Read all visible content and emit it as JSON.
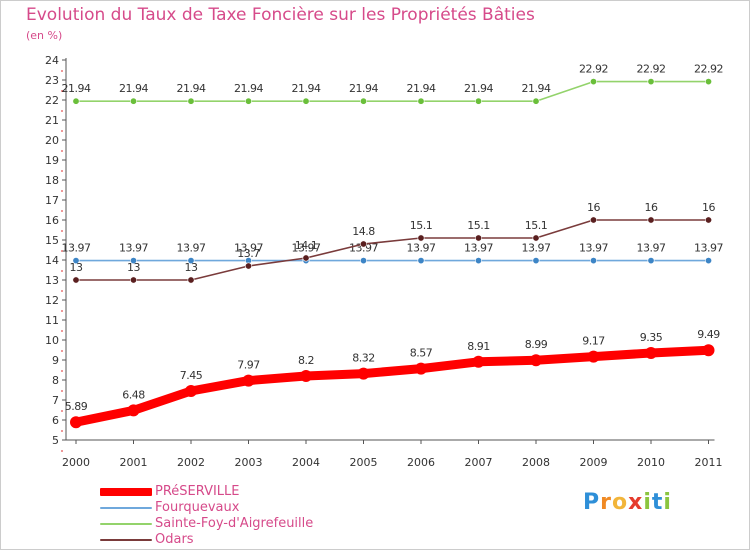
{
  "header": {
    "title": "Evolution du Taux de Taxe Foncière sur les Propriétés Bâties",
    "unit": "(en %)"
  },
  "chart_data": {
    "type": "line",
    "title": "Evolution du Taux de Taxe Foncière sur les Propriétés Bâties",
    "ylabel": "(en %)",
    "xlabel": "",
    "categories": [
      "2000",
      "2001",
      "2002",
      "2003",
      "2004",
      "2005",
      "2006",
      "2007",
      "2008",
      "2009",
      "2010",
      "2011"
    ],
    "ylim": [
      5,
      24
    ],
    "yticks": [
      "5",
      "6",
      "7",
      "8",
      "9",
      "10",
      "11",
      "12",
      "13",
      "14",
      "15",
      "16",
      "17",
      "18",
      "19",
      "20",
      "21",
      "22",
      "23",
      "24"
    ],
    "grid": false,
    "legend_position": "bottom-left",
    "series": [
      {
        "name": "PRéSERVILLE",
        "color": "#ff0000",
        "values": [
          5.89,
          6.48,
          7.45,
          7.97,
          8.2,
          8.32,
          8.57,
          8.91,
          8.99,
          9.17,
          9.35,
          9.49
        ],
        "labels": [
          "5.89",
          "6.48",
          "7.45",
          "7.97",
          "8.2",
          "8.32",
          "8.57",
          "8.91",
          "8.99",
          "9.17",
          "9.35",
          "9.49"
        ]
      },
      {
        "name": "Fourquevaux",
        "color": "#6fa8dc",
        "marker_color": "#3d85c6",
        "values": [
          13.97,
          13.97,
          13.97,
          13.97,
          13.97,
          13.97,
          13.97,
          13.97,
          13.97,
          13.97,
          13.97,
          13.97
        ],
        "labels": [
          "13.97",
          "13.97",
          "13.97",
          "13.97",
          "13.97",
          "13.97",
          "13.97",
          "13.97",
          "13.97",
          "13.97",
          "13.97",
          "13.97"
        ]
      },
      {
        "name": "Sainte-Foy-d'Aigrefeuille",
        "color": "#93d36b",
        "marker_color": "#6abf3a",
        "values": [
          21.94,
          21.94,
          21.94,
          21.94,
          21.94,
          21.94,
          21.94,
          21.94,
          21.94,
          22.92,
          22.92,
          22.92
        ],
        "labels": [
          "21.94",
          "21.94",
          "21.94",
          "21.94",
          "21.94",
          "21.94",
          "21.94",
          "21.94",
          "21.94",
          "22.92",
          "22.92",
          "22.92"
        ]
      },
      {
        "name": "Odars",
        "color": "#7a3b3b",
        "marker_color": "#5a1f1f",
        "values": [
          13,
          13,
          13,
          13.7,
          14.1,
          14.8,
          15.1,
          15.1,
          15.1,
          16,
          16,
          16
        ],
        "labels": [
          "13",
          "13",
          "13",
          "13.7",
          "14.1",
          "14.8",
          "15.1",
          "15.1",
          "15.1",
          "16",
          "16",
          "16"
        ]
      }
    ]
  },
  "colors": {
    "text": "#d64a8a",
    "axis": "#555555",
    "axis_marker": "#dd3333"
  },
  "branding": {
    "logo_letters": [
      "P",
      "r",
      "o",
      "x",
      "i",
      "t",
      "i"
    ],
    "logo_colors": [
      "#2e8fd8",
      "#f08a24",
      "#f2b53a",
      "#e53b2d",
      "#8bc53f",
      "#2e8fd8",
      "#8bc53f"
    ]
  }
}
